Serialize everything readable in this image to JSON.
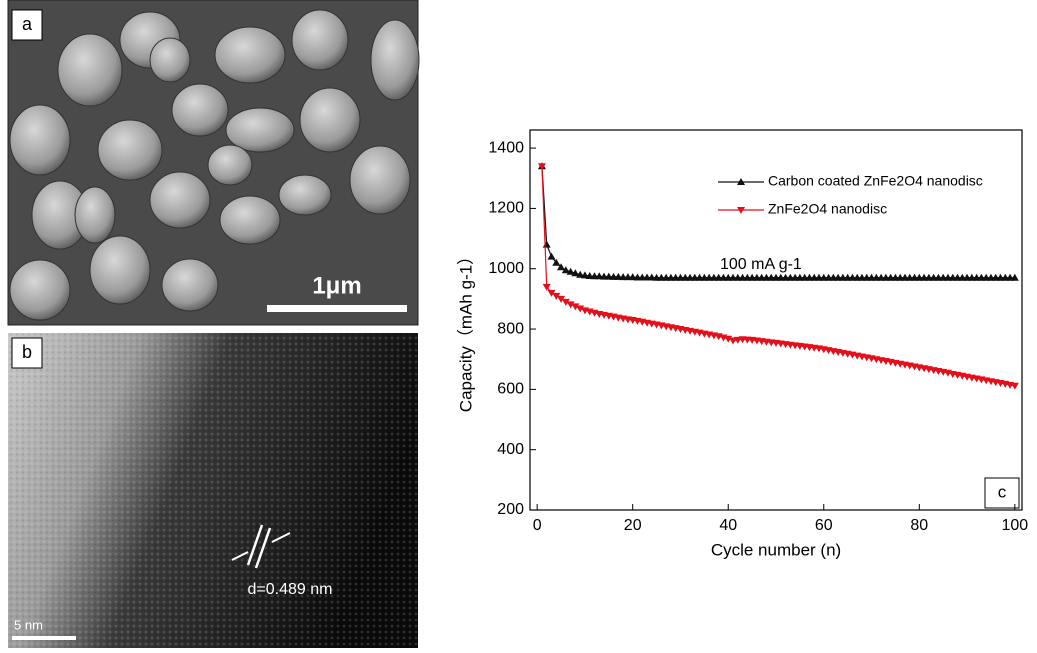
{
  "panels": {
    "a": {
      "label": "a",
      "scale_bar": "1μm"
    },
    "b": {
      "label": "b",
      "spacing": "d=0.489 nm",
      "scale_bar": "5 nm"
    }
  },
  "chart_data": {
    "type": "line",
    "panel_label": "c",
    "x_label": "Cycle number (n)",
    "y_label": "Capacity（mAh g-1）",
    "annotation": "100 mA g-1",
    "xlim": [
      -1.5,
      101.5
    ],
    "ylim": [
      200,
      1460
    ],
    "xticks": [
      0,
      20,
      40,
      60,
      80,
      100
    ],
    "yticks": [
      200,
      400,
      600,
      800,
      1000,
      1200,
      1400
    ],
    "legend": "top-right",
    "x": [
      1,
      2,
      3,
      4,
      5,
      6,
      7,
      8,
      9,
      10,
      11,
      12,
      13,
      14,
      15,
      16,
      17,
      18,
      19,
      20,
      21,
      22,
      23,
      24,
      25,
      26,
      27,
      28,
      29,
      30,
      31,
      32,
      33,
      34,
      35,
      36,
      37,
      38,
      39,
      40,
      41,
      42,
      43,
      44,
      45,
      46,
      47,
      48,
      49,
      50,
      51,
      52,
      53,
      54,
      55,
      56,
      57,
      58,
      59,
      60,
      61,
      62,
      63,
      64,
      65,
      66,
      67,
      68,
      69,
      70,
      71,
      72,
      73,
      74,
      75,
      76,
      77,
      78,
      79,
      80,
      81,
      82,
      83,
      84,
      85,
      86,
      87,
      88,
      89,
      90,
      91,
      92,
      93,
      94,
      95,
      96,
      97,
      98,
      99,
      100
    ],
    "series": [
      {
        "name": "Carbon coated ZnFe2O4 nanodisc",
        "color": "#111111",
        "marker": "triangle-up",
        "values": [
          1340,
          1080,
          1040,
          1020,
          1005,
          995,
          990,
          985,
          980,
          978,
          976,
          975,
          975,
          974,
          974,
          973,
          973,
          972,
          972,
          972,
          971,
          971,
          971,
          971,
          970,
          970,
          970,
          970,
          970,
          970,
          970,
          970,
          970,
          970,
          970,
          970,
          970,
          970,
          970,
          970,
          970,
          970,
          970,
          970,
          970,
          970,
          970,
          970,
          970,
          970,
          970,
          970,
          970,
          970,
          970,
          970,
          970,
          970,
          970,
          970,
          970,
          970,
          970,
          970,
          970,
          970,
          970,
          970,
          970,
          970,
          970,
          970,
          970,
          970,
          970,
          970,
          970,
          970,
          970,
          970,
          970,
          970,
          970,
          970,
          970,
          970,
          970,
          970,
          970,
          970,
          970,
          970,
          970,
          970,
          970,
          970,
          970,
          970,
          970,
          970
        ]
      },
      {
        "name": "ZnFe2O4 nanodisc",
        "color": "#e3101c",
        "marker": "triangle-down",
        "values": [
          1340,
          940,
          920,
          910,
          900,
          890,
          882,
          875,
          868,
          862,
          858,
          854,
          850,
          847,
          844,
          841,
          838,
          835,
          832,
          830,
          827,
          824,
          821,
          818,
          815,
          812,
          809,
          806,
          803,
          800,
          797,
          794,
          791,
          788,
          785,
          782,
          779,
          776,
          772,
          768,
          762,
          764,
          766,
          765,
          764,
          762,
          760,
          758,
          756,
          754,
          752,
          750,
          748,
          746,
          744,
          742,
          740,
          738,
          736,
          733,
          730,
          727,
          724,
          721,
          718,
          715,
          712,
          709,
          706,
          703,
          700,
          697,
          694,
          691,
          688,
          685,
          682,
          679,
          676,
          673,
          670,
          667,
          664,
          661,
          658,
          655,
          651,
          648,
          645,
          642,
          639,
          636,
          633,
          630,
          627,
          624,
          621,
          618,
          615,
          612
        ]
      }
    ]
  }
}
